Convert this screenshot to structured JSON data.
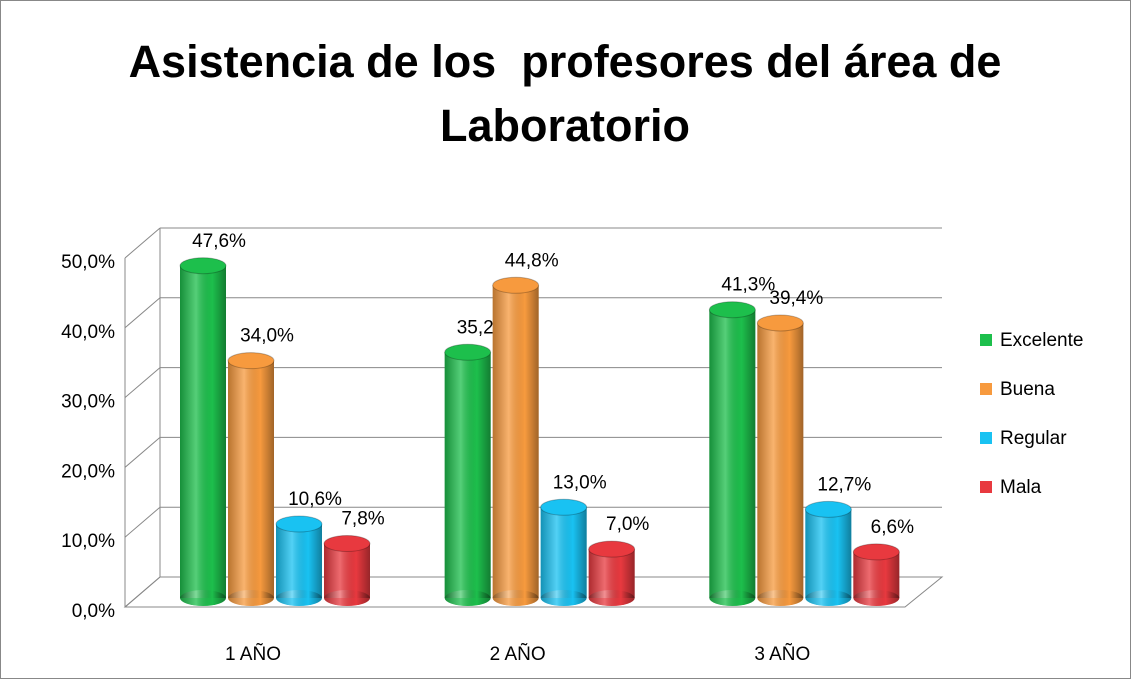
{
  "chart_data": {
    "type": "bar3d",
    "title": "Asistencia de los  profesores del área de Laboratorio",
    "categories": [
      "1 AÑO",
      "2 AÑO",
      "3 AÑO"
    ],
    "series": [
      {
        "name": "Excelente",
        "color": "#1dbf4c",
        "values": [
          47.6,
          35.2,
          41.3
        ],
        "value_labels": [
          "47,6%",
          "35,2%",
          "41,3%"
        ]
      },
      {
        "name": "Buena",
        "color": "#f79a3e",
        "values": [
          34.0,
          44.8,
          39.4
        ],
        "value_labels": [
          "34,0%",
          "44,8%",
          "39,4%"
        ]
      },
      {
        "name": "Regular",
        "color": "#19c2f2",
        "values": [
          10.6,
          13.0,
          12.7
        ],
        "value_labels": [
          "10,6%",
          "13,0%",
          "12,7%"
        ]
      },
      {
        "name": "Mala",
        "color": "#e8393f",
        "values": [
          7.8,
          7.0,
          6.6
        ],
        "value_labels": [
          "7,8%",
          "7,0%",
          "6,6%"
        ]
      }
    ],
    "ylim": [
      0,
      50
    ],
    "yticks": [
      {
        "value": 0,
        "label": "0,0%"
      },
      {
        "value": 10,
        "label": "10,0%"
      },
      {
        "value": 20,
        "label": "20,0%"
      },
      {
        "value": 30,
        "label": "30,0%"
      },
      {
        "value": 40,
        "label": "40,0%"
      },
      {
        "value": 50,
        "label": "50,0%"
      }
    ],
    "grid": true,
    "legend": "right"
  }
}
